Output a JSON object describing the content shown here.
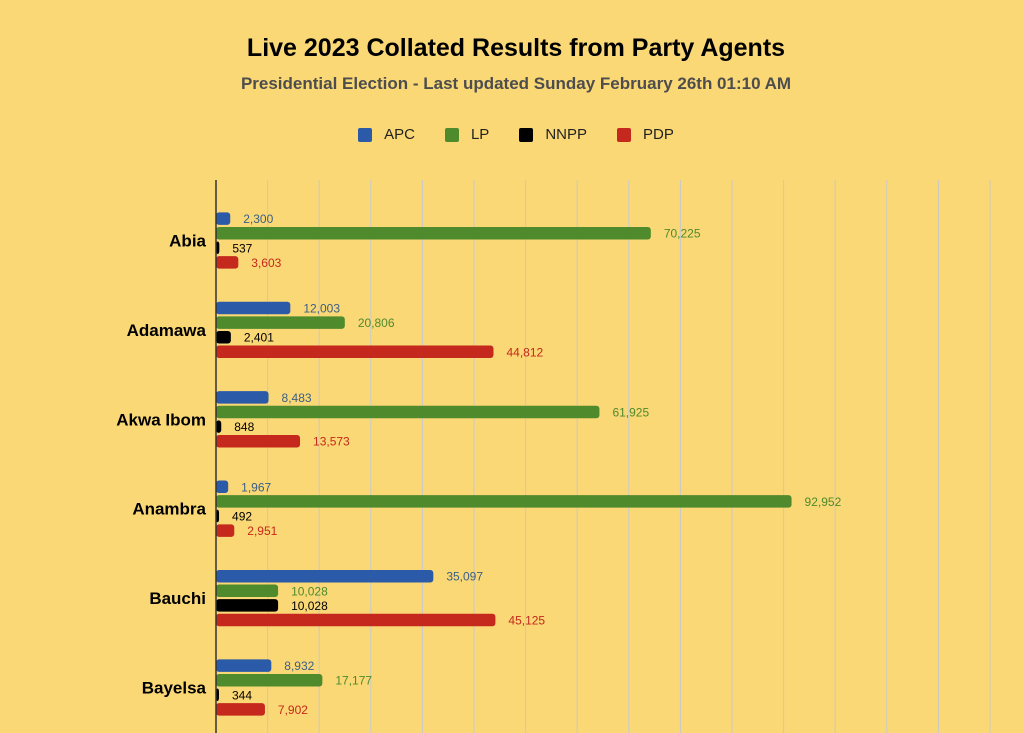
{
  "title": "Live 2023 Collated Results from Party Agents",
  "subtitle": "Presidential Election - Last updated Sunday February 26th 01:10 AM",
  "colors": {
    "APC": "#2a5aa8",
    "LP": "#4f8a2c",
    "NNPP": "#000000",
    "PDP": "#c5281c",
    "grid": "#c9c9c9",
    "axis": "#333333"
  },
  "label_colors": {
    "APC": "#3a5f87",
    "LP": "#4f8a2c",
    "NNPP": "#000000",
    "PDP": "#c5281c"
  },
  "legend": [
    {
      "name": "APC",
      "icon": "square-swatch"
    },
    {
      "name": "LP",
      "icon": "square-swatch"
    },
    {
      "name": "NNPP",
      "icon": "square-swatch"
    },
    {
      "name": "PDP",
      "icon": "square-swatch"
    }
  ],
  "chart_data": {
    "type": "bar",
    "orientation": "horizontal",
    "categories": [
      "Abia",
      "Adamawa",
      "Akwa Ibom",
      "Anambra",
      "Bauchi",
      "Bayelsa"
    ],
    "series": [
      {
        "name": "APC",
        "values": [
          2300,
          12003,
          8483,
          1967,
          35097,
          8932
        ],
        "labels": [
          "2,300",
          "12,003",
          "8,483",
          "1,967",
          "35,097",
          "8,932"
        ]
      },
      {
        "name": "LP",
        "values": [
          70225,
          20806,
          61925,
          92952,
          10028,
          17177
        ],
        "labels": [
          "70,225",
          "20,806",
          "61,925",
          "92,952",
          "10,028",
          "17,177"
        ]
      },
      {
        "name": "NNPP",
        "values": [
          537,
          2401,
          848,
          492,
          10028,
          344
        ],
        "labels": [
          "537",
          "2,401",
          "848",
          "492",
          "10,028",
          "344"
        ]
      },
      {
        "name": "PDP",
        "values": [
          3603,
          44812,
          13573,
          2951,
          45125,
          7902
        ],
        "labels": [
          "3,603",
          "44,812",
          "13,573",
          "2,951",
          "45,125",
          "7,902"
        ]
      }
    ],
    "xlim": [
      0,
      125000
    ],
    "grid_step": 8333.33,
    "grid": true,
    "legend_position": "top",
    "data_labels": true,
    "title": "Live 2023 Collated Results from Party Agents",
    "xlabel": "",
    "ylabel": ""
  }
}
